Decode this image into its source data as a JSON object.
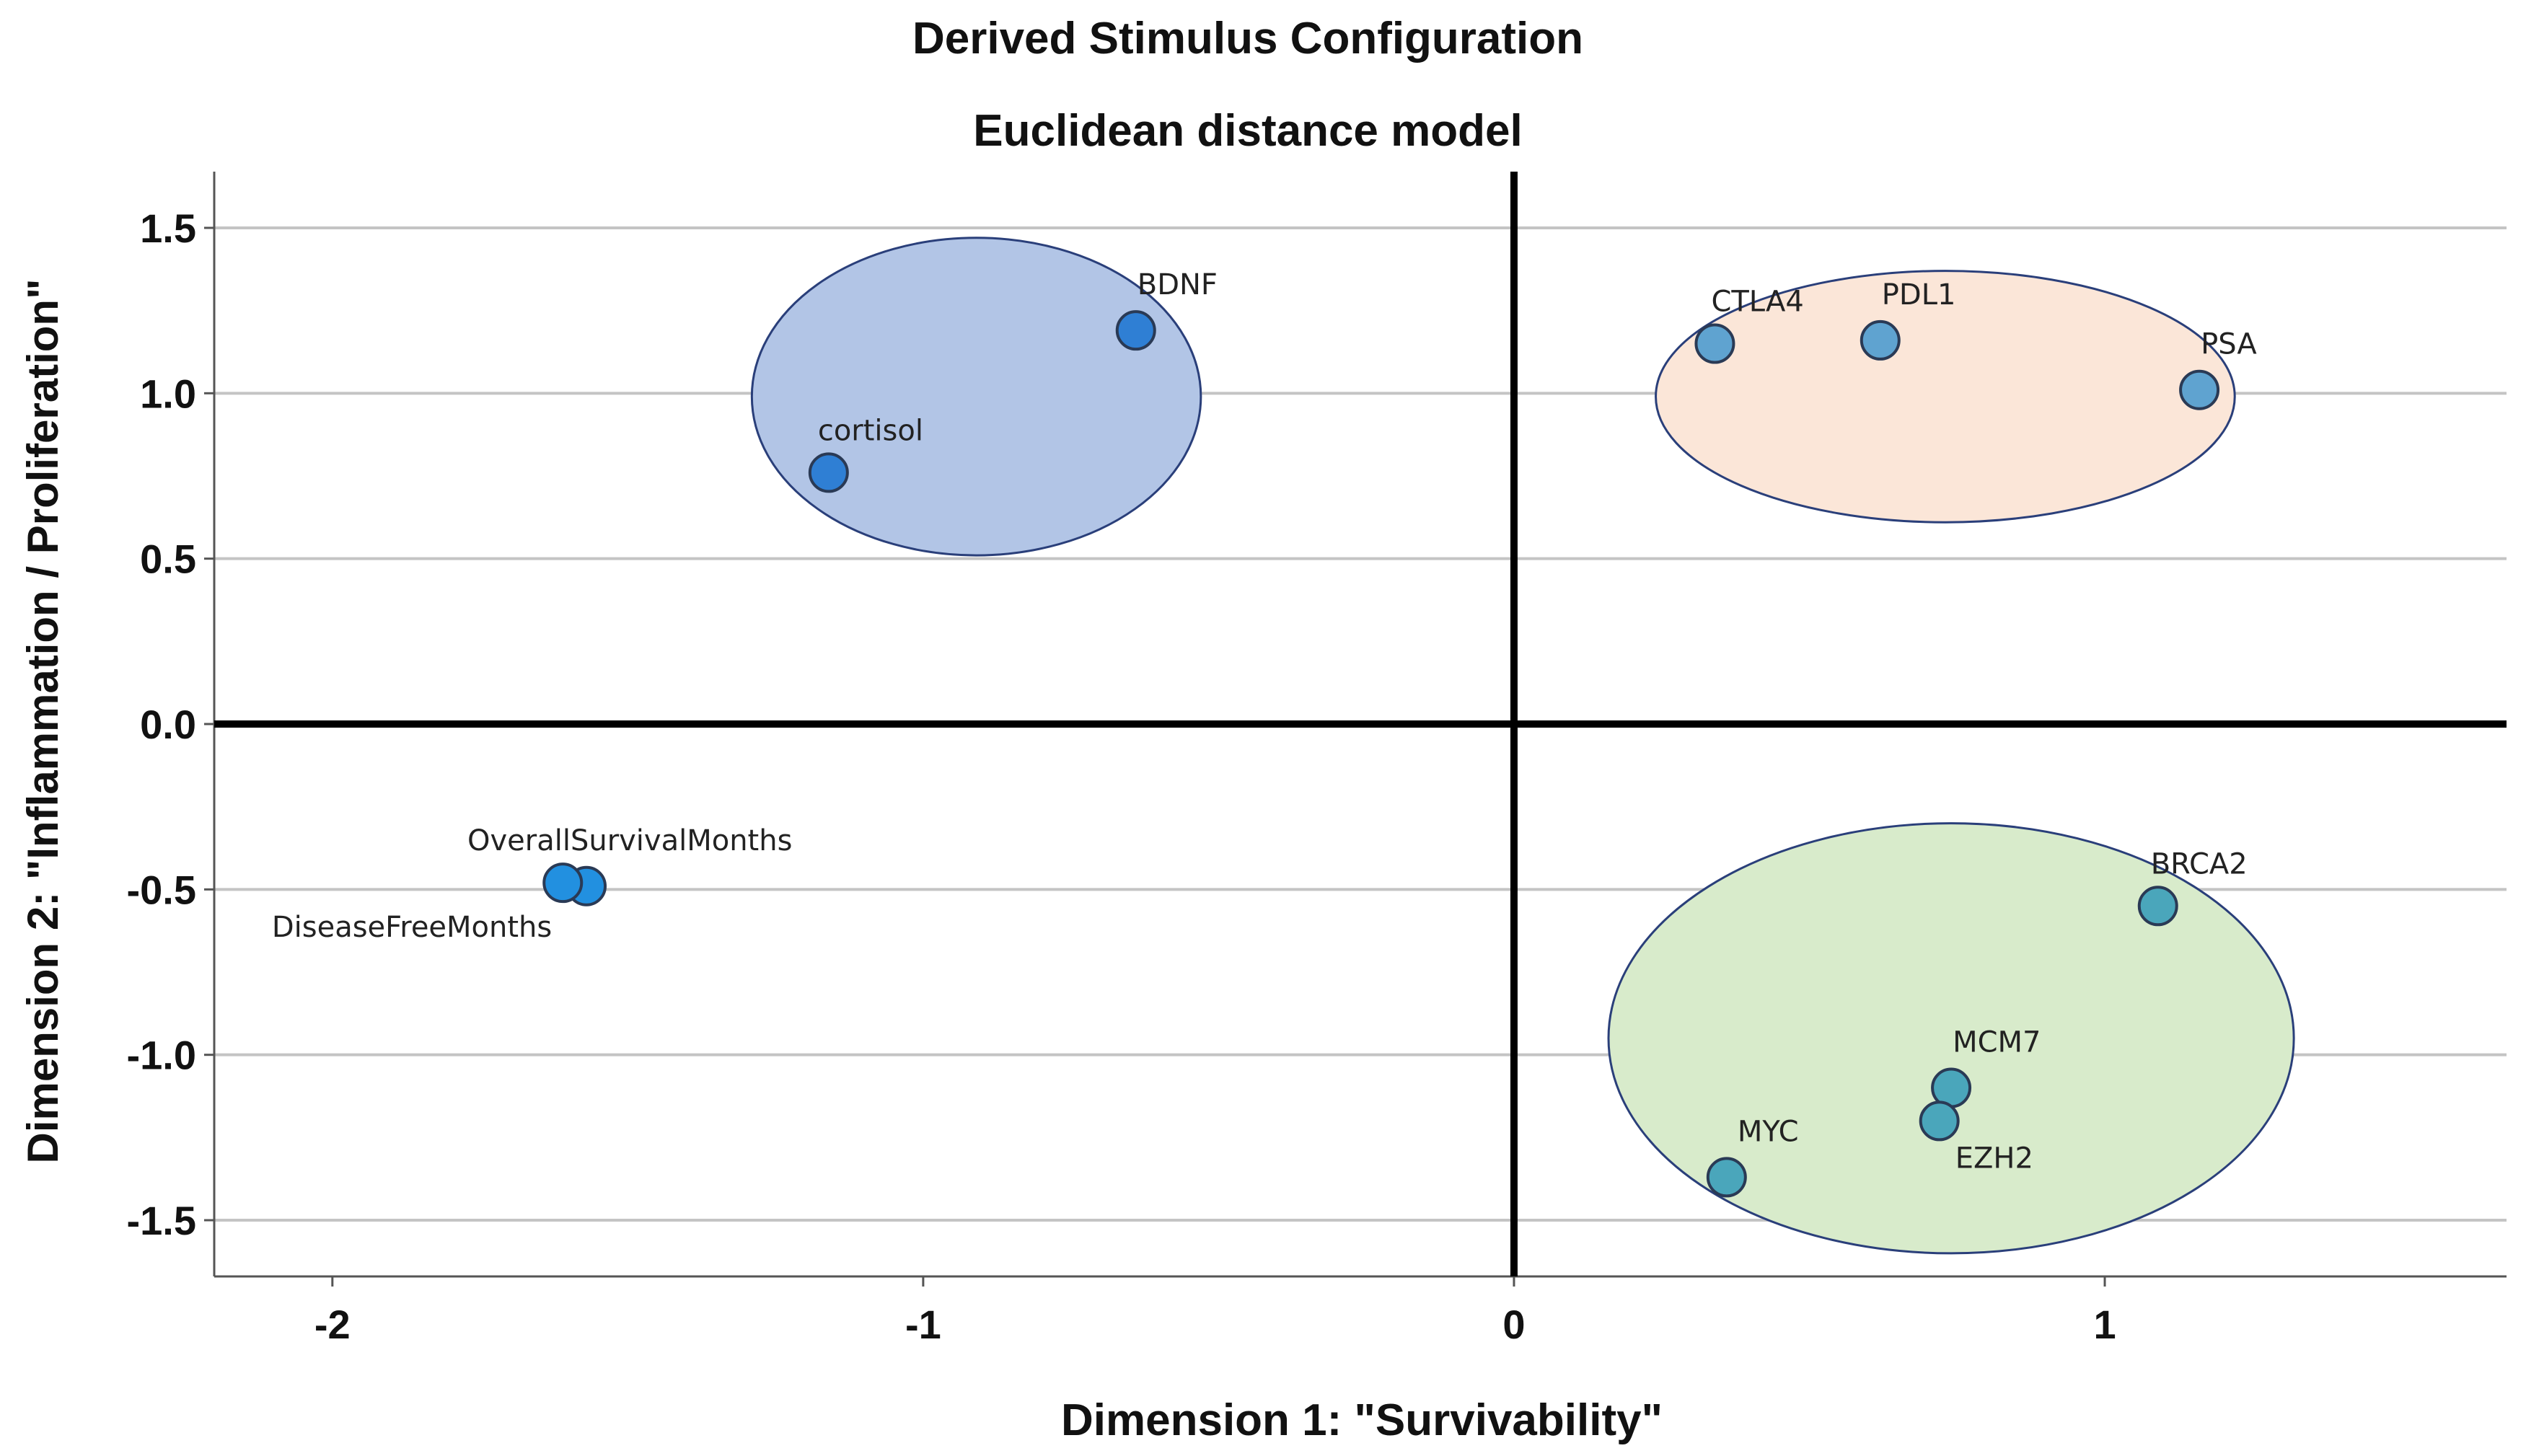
{
  "chart_data": {
    "type": "scatter",
    "title": "Derived Stimulus Configuration",
    "subtitle": "Euclidean distance model",
    "xlabel": "Dimension 1: \"Survivability\"",
    "ylabel": "Dimension 2: \"Inflammation / Proliferation\"",
    "xlim": [
      -2.2,
      1.68
    ],
    "ylim": [
      -1.67,
      1.67
    ],
    "xticks": [
      -2,
      -1,
      0,
      1
    ],
    "xtick_labels": [
      "-2",
      "-1",
      "0",
      "1"
    ],
    "yticks": [
      1.5,
      1.0,
      0.5,
      0.0,
      -0.5,
      -1.0,
      -1.5
    ],
    "ytick_labels": [
      "1.5",
      "1.0",
      "0.5",
      "0.0",
      "-0.5",
      "-1.0",
      "-1.5"
    ],
    "grid": "horizontal",
    "reference_lines": {
      "x": 0,
      "y": 0
    },
    "points": [
      {
        "label": "BDNF",
        "x": -0.64,
        "y": 1.19,
        "color": "#2f7fd4",
        "label_pos": "above-right"
      },
      {
        "label": "cortisol",
        "x": -1.16,
        "y": 0.76,
        "color": "#2f7fd4",
        "label_pos": "above"
      },
      {
        "label": "CTLA4",
        "x": 0.34,
        "y": 1.15,
        "color": "#5fa3d0",
        "label_pos": "above"
      },
      {
        "label": "PDL1",
        "x": 0.62,
        "y": 1.16,
        "color": "#5fa3d0",
        "label_pos": "above-right"
      },
      {
        "label": "PSA",
        "x": 1.16,
        "y": 1.01,
        "color": "#5fa3d0",
        "label_pos": "above-right"
      },
      {
        "label": "OverallSurvivalMonths",
        "x": -1.57,
        "y": -0.49,
        "color": "#2290e0",
        "label_pos": "above-right"
      },
      {
        "label": "DiseaseFreeMonths",
        "x": -1.61,
        "y": -0.48,
        "color": "#2290e0",
        "label_pos": "below-left"
      },
      {
        "label": "BRCA2",
        "x": 1.09,
        "y": -0.55,
        "color": "#4aa6bb",
        "label_pos": "above"
      },
      {
        "label": "MCM7",
        "x": 0.74,
        "y": -1.1,
        "color": "#4aa6bb",
        "label_pos": "above-right"
      },
      {
        "label": "EZH2",
        "x": 0.72,
        "y": -1.2,
        "color": "#4aa6bb",
        "label_pos": "below-right"
      },
      {
        "label": "MYC",
        "x": 0.36,
        "y": -1.37,
        "color": "#4aa6bb",
        "label_pos": "above-right"
      }
    ],
    "clusters": [
      {
        "name": "blue-cluster",
        "cx": -0.91,
        "cy": 0.99,
        "rx": 0.38,
        "ry": 0.48,
        "fill": "#b2c5e6",
        "stroke": "#2a3f7a"
      },
      {
        "name": "orange-cluster",
        "cx": 0.73,
        "cy": 0.99,
        "rx": 0.49,
        "ry": 0.38,
        "fill": "#fbe6d8",
        "stroke": "#2a3f7a"
      },
      {
        "name": "green-cluster",
        "cx": 0.74,
        "cy": -0.95,
        "rx": 0.58,
        "ry": 0.65,
        "fill": "#d8ebcb",
        "stroke": "#2a3f7a"
      }
    ]
  }
}
